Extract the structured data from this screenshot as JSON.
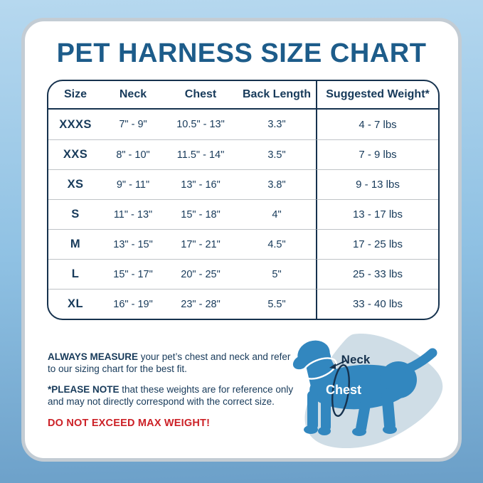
{
  "title": "PET HARNESS SIZE CHART",
  "table": {
    "headers": [
      "Size",
      "Neck",
      "Chest",
      "Back Length",
      "Suggested Weight*"
    ],
    "rows": [
      [
        "XXXS",
        "7\" - 9\"",
        "10.5\" - 13\"",
        "3.3\"",
        "4 - 7 lbs"
      ],
      [
        "XXS",
        "8\" - 10\"",
        "11.5\" - 14\"",
        "3.5\"",
        "7 - 9 lbs"
      ],
      [
        "XS",
        "9\" - 11\"",
        "13\" - 16\"",
        "3.8\"",
        "9 - 13 lbs"
      ],
      [
        "S",
        "11\" - 13\"",
        "15\" - 18\"",
        "4\"",
        "13 - 17 lbs"
      ],
      [
        "M",
        "13\" - 15\"",
        "17\" - 21\"",
        "4.5\"",
        "17 - 25 lbs"
      ],
      [
        "L",
        "15\" - 17\"",
        "20\" - 25\"",
        "5\"",
        "25 - 33 lbs"
      ],
      [
        "XL",
        "16\" - 19\"",
        "23\" - 28\"",
        "5.5\"",
        "33 - 40 lbs"
      ]
    ]
  },
  "notes": {
    "measure": {
      "bold": "ALWAYS MEASURE",
      "line1_rest": " your pet’s chest and neck and refer",
      "line2": "to our sizing chart for the best fit."
    },
    "note": {
      "bold": "*PLEASE NOTE",
      "line1_rest": " that these weights are for reference only",
      "line2": "and may not directly correspond with the correct size."
    },
    "warning": "DO NOT EXCEED MAX WEIGHT!"
  },
  "diagram": {
    "neck_label": "Neck",
    "chest_label": "Chest"
  },
  "colors": {
    "background_top": "#b6d8ef",
    "background_bottom": "#6b9fc8",
    "card_border": "#c3ccd4",
    "title_blue": "#1d5c8a",
    "table_line_navy": "#16324e",
    "text_navy": "#173a5a",
    "row_divider_gray": "#bfc3c7",
    "warning_red": "#cc2127",
    "dog_blue": "#3287bf",
    "blob_gray_blue": "#cfdde6"
  }
}
